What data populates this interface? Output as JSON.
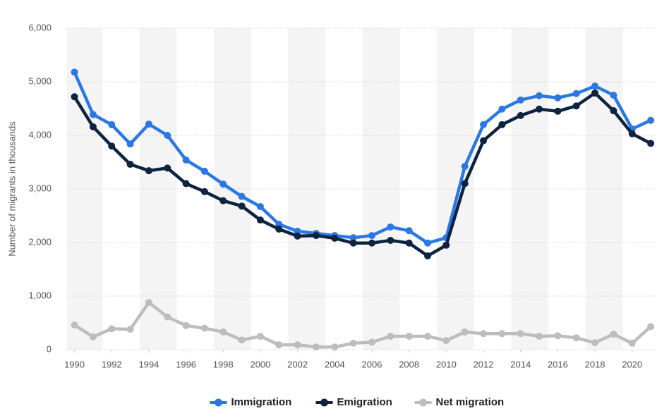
{
  "chart_data": {
    "type": "line",
    "y_label": "Number of migrants in thousands",
    "x": [
      1990,
      1991,
      1992,
      1993,
      1994,
      1995,
      1996,
      1997,
      1998,
      1999,
      2000,
      2001,
      2002,
      2003,
      2004,
      2005,
      2006,
      2007,
      2008,
      2009,
      2010,
      2011,
      2012,
      2013,
      2014,
      2015,
      2016,
      2017,
      2018,
      2019,
      2020,
      2021
    ],
    "series": [
      {
        "name": "Immigration",
        "color": "#2b78e4",
        "values": [
          5180,
          4390,
          4200,
          3840,
          4210,
          4000,
          3540,
          3330,
          3090,
          2860,
          2670,
          2340,
          2210,
          2170,
          2130,
          2090,
          2130,
          2290,
          2220,
          1990,
          2090,
          3420,
          4200,
          4490,
          4660,
          4740,
          4700,
          4780,
          4920,
          4750,
          4120,
          4280
        ]
      },
      {
        "name": "Emigration",
        "color": "#0d2340",
        "values": [
          4720,
          4160,
          3800,
          3460,
          3340,
          3390,
          3100,
          2950,
          2780,
          2680,
          2420,
          2250,
          2120,
          2130,
          2080,
          1990,
          1990,
          2040,
          1990,
          1750,
          1950,
          3100,
          3900,
          4200,
          4370,
          4490,
          4450,
          4550,
          4790,
          4460,
          4030,
          3850
        ]
      },
      {
        "name": "Net migration",
        "color": "#bdbdbd",
        "values": [
          460,
          240,
          390,
          380,
          880,
          610,
          450,
          400,
          330,
          180,
          250,
          90,
          90,
          50,
          50,
          120,
          140,
          250,
          250,
          250,
          170,
          330,
          300,
          300,
          300,
          250,
          260,
          220,
          130,
          290,
          120,
          430
        ]
      }
    ],
    "xlim": [
      1989.6,
      2021.3
    ],
    "xticks": [
      1990,
      1992,
      1994,
      1996,
      1998,
      2000,
      2002,
      2004,
      2006,
      2008,
      2010,
      2012,
      2014,
      2016,
      2018,
      2020
    ],
    "ylim": [
      0,
      6000
    ],
    "yticks": [
      0,
      {
        "value": 1000,
        "label": "1,000"
      },
      {
        "value": 2000,
        "label": "2,000"
      },
      {
        "value": 3000,
        "label": "3,000"
      },
      {
        "value": 4000,
        "label": "4,000"
      },
      {
        "value": 5000,
        "label": "5,000"
      },
      {
        "value": 6000,
        "label": "6,000"
      }
    ],
    "grid": true,
    "legend": "bottom"
  }
}
